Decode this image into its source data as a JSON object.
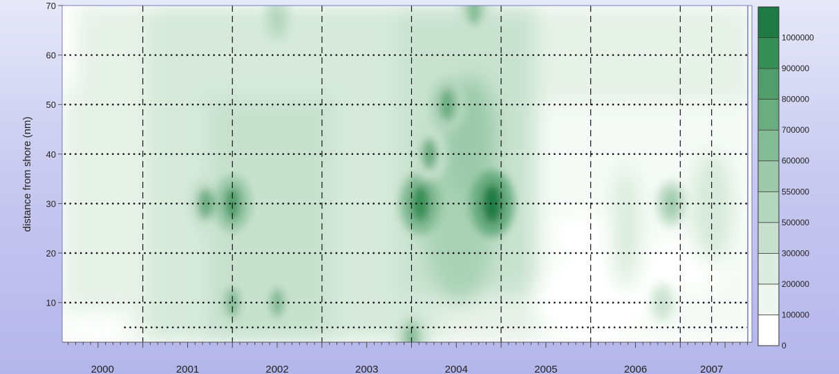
{
  "chart_data": {
    "type": "heatmap",
    "title": "",
    "xlabel": "",
    "ylabel": "distance from shore (nm)",
    "y_ticks": [
      10,
      20,
      30,
      40,
      50,
      60,
      70
    ],
    "ylim": [
      2,
      70
    ],
    "xlim": [
      1999.6,
      2007.3
    ],
    "year_labels": [
      {
        "label": "2000",
        "center": 2000.05
      },
      {
        "label": "2001",
        "center": 2001.0
      },
      {
        "label": "2002",
        "center": 2002.0
      },
      {
        "label": "2003",
        "center": 2003.0
      },
      {
        "label": "2004",
        "center": 2004.0
      },
      {
        "label": "2005",
        "center": 2005.0
      },
      {
        "label": "2006",
        "center": 2006.0
      },
      {
        "label": "2007",
        "center": 2006.85
      }
    ],
    "year_boundaries": [
      2000.5,
      2001.5,
      2002.5,
      2003.5,
      2004.5,
      2005.5,
      2006.5
    ],
    "sample_depths": [
      5,
      10,
      20,
      30,
      40,
      50,
      60
    ],
    "colorbar": {
      "levels": [
        0,
        100000,
        200000,
        300000,
        500000,
        550000,
        600000,
        700000,
        800000,
        900000,
        1000000
      ],
      "labels": [
        "0",
        "100000",
        "200000",
        "300000",
        "500000",
        "550000",
        "600000",
        "700000",
        "800000",
        "900000",
        "1000000"
      ],
      "colors": [
        "#ffffff",
        "#eef6ef",
        "#dcece0",
        "#c8e1cf",
        "#b3d6be",
        "#9ccaab",
        "#84bc96",
        "#6bad81",
        "#519d6b",
        "#388e57",
        "#1f7a44"
      ]
    },
    "hotspots": [
      {
        "x": 2001.2,
        "y": 30,
        "value": 700000
      },
      {
        "x": 2001.5,
        "y": 30,
        "value": 800000
      },
      {
        "x": 2001.5,
        "y": 10,
        "value": 650000
      },
      {
        "x": 2002.0,
        "y": 10,
        "value": 600000
      },
      {
        "x": 2002.0,
        "y": 67,
        "value": 500000
      },
      {
        "x": 2003.6,
        "y": 30,
        "value": 900000
      },
      {
        "x": 2003.7,
        "y": 40,
        "value": 700000
      },
      {
        "x": 2003.9,
        "y": 50,
        "value": 750000
      },
      {
        "x": 2004.4,
        "y": 30,
        "value": 1000000
      },
      {
        "x": 2004.2,
        "y": 69,
        "value": 600000
      },
      {
        "x": 2003.5,
        "y": 3,
        "value": 600000
      },
      {
        "x": 2006.4,
        "y": 30,
        "value": 550000
      },
      {
        "x": 2006.3,
        "y": 10,
        "value": 400000
      }
    ]
  }
}
